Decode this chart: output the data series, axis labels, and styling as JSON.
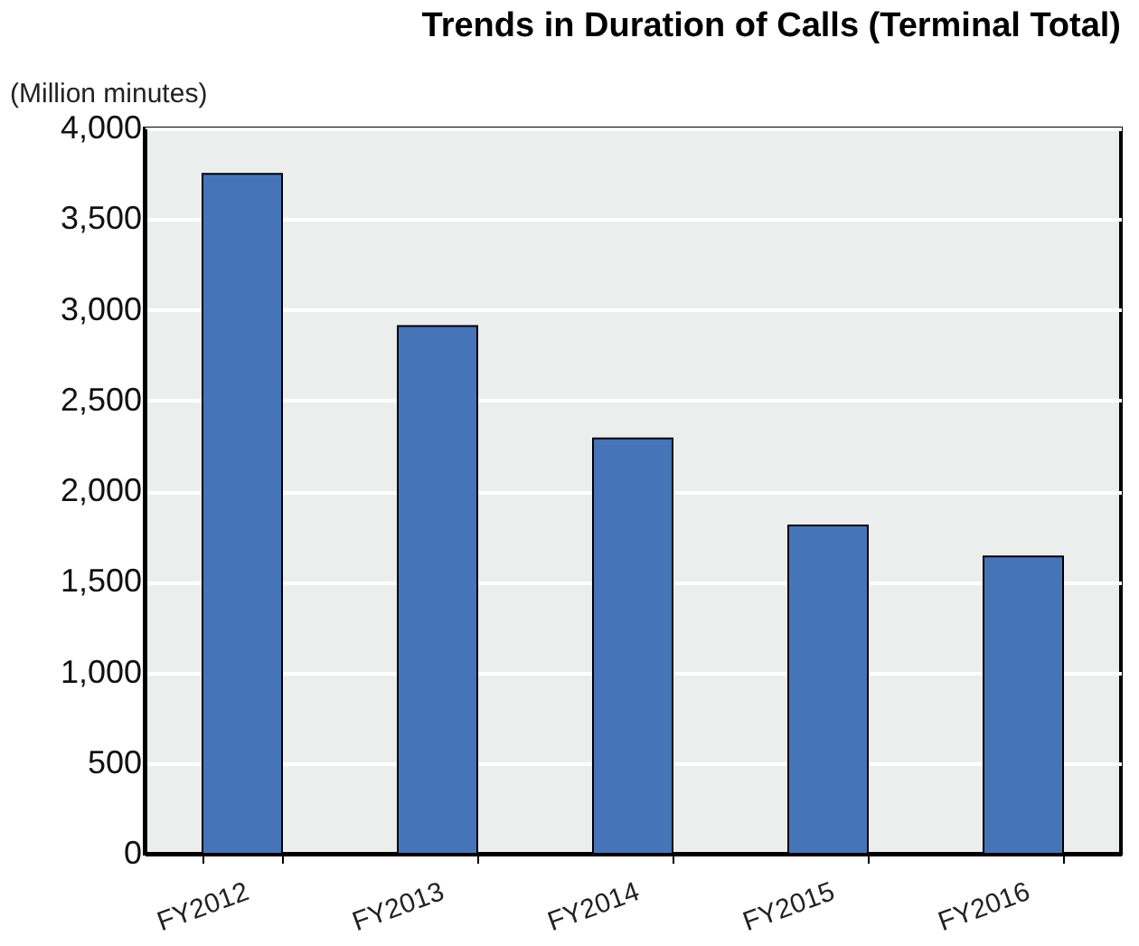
{
  "chart_data": {
    "type": "bar",
    "title": "Trends in Duration of Calls (Terminal Total)",
    "ylabel": "(Million minutes)",
    "categories": [
      "FY2012",
      "FY2013",
      "FY2014",
      "FY2015",
      "FY2016"
    ],
    "values": [
      3750,
      2910,
      2290,
      1810,
      1640
    ],
    "color": "#4674b8",
    "ylim": [
      0,
      4000
    ],
    "yticks": [
      0,
      500,
      {
        "value": 1000,
        "label": "1,000"
      },
      {
        "value": 1500,
        "label": "1,500"
      },
      {
        "value": 2000,
        "label": "2,000"
      },
      {
        "value": 2500,
        "label": "2,500"
      },
      {
        "value": 3000,
        "label": "3,000"
      },
      {
        "value": 3500,
        "label": "3,500"
      },
      {
        "value": 4000,
        "label": "4,000"
      }
    ],
    "grid": "y"
  }
}
